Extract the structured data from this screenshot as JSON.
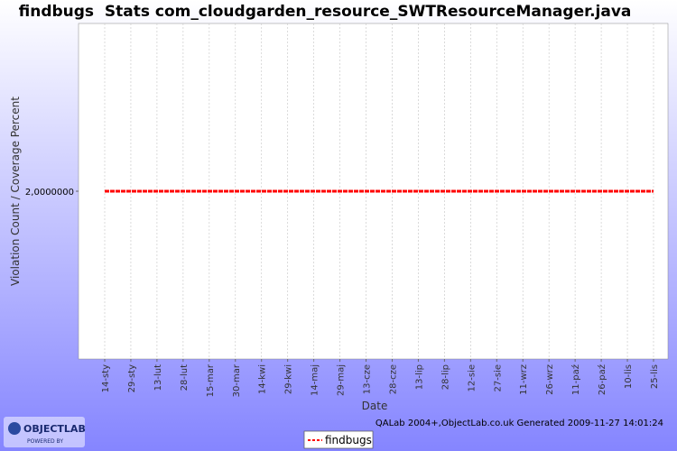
{
  "chart_data": {
    "type": "line",
    "title": "findbugs  Stats com_cloudgarden_resource_SWTResourceManager.java",
    "x_label": "Date",
    "y_label": "Violation Count / Coverage Percent",
    "categories": [
      "14-sty",
      "29-sty",
      "13-lut",
      "28-lut",
      "15-mar",
      "30-mar",
      "14-kwi",
      "29-kwi",
      "14-maj",
      "29-maj",
      "13-cze",
      "28-cze",
      "13-lip",
      "28-lip",
      "12-sie",
      "27-sie",
      "11-wrz",
      "26-wrz",
      "11-paź",
      "26-paź",
      "10-lis",
      "25-lis"
    ],
    "series": [
      {
        "name": "findbugs",
        "color": "#ff0000",
        "values": [
          2,
          2,
          2,
          2,
          2,
          2,
          2,
          2,
          2,
          2,
          2,
          2,
          2,
          2,
          2,
          2,
          2,
          2,
          2,
          2,
          2,
          2
        ]
      }
    ],
    "ylim": [
      1,
      3
    ],
    "yticks": [
      {
        "value": 2,
        "label": "2,0000000"
      }
    ],
    "grid": true,
    "legend": "bottom",
    "footer": "QALab 2004+,ObjectLab.co.uk Generated 2009-11-27 14:01:24"
  },
  "logo": {
    "name": "OBJECTLAB",
    "tagline": "POWERED BY"
  }
}
